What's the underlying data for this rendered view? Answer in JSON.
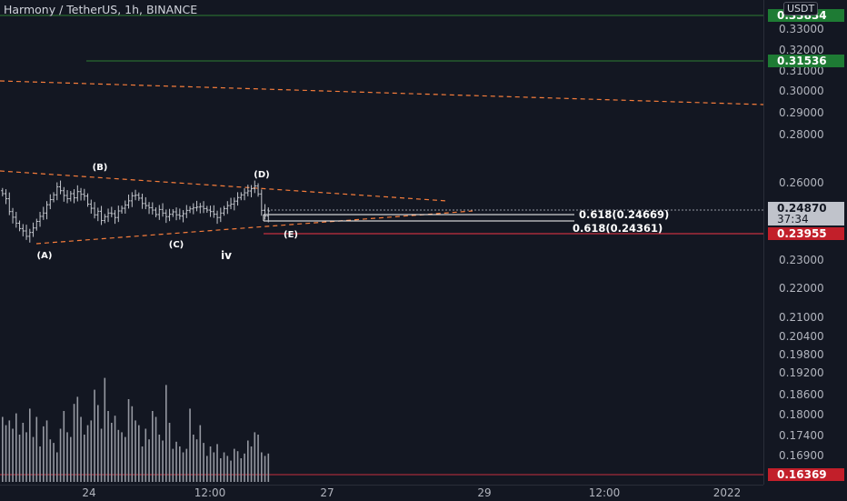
{
  "symbol_title": "Harmony / TetherUS, 1h, BINANCE",
  "currency_button": "USDT",
  "colors": {
    "background": "#131722",
    "bar": "#c4c7ce",
    "volume": "#9598a1",
    "trendline": "#f57c3b",
    "support_line": "#f23645",
    "green_label": "#1e7b34",
    "red_label": "#c21f2a",
    "current_label": "#c0c3cb"
  },
  "price_axis": {
    "ticks": [
      "0.33000",
      "0.32000",
      "0.31000",
      "0.30000",
      "0.29000",
      "0.28000",
      "0.26000",
      "0.23000",
      "0.22000",
      "0.21000",
      "0.20400",
      "0.19800",
      "0.19200",
      "0.18600",
      "0.18000",
      "0.17400",
      "0.16900"
    ],
    "labels": {
      "top_green": "0.33834",
      "mid_green": "0.31536",
      "current_price": "0.24870",
      "countdown": "37:34",
      "support_red": "0.23955",
      "bottom_red": "0.16369"
    }
  },
  "time_axis": {
    "ticks": [
      "24",
      "12:00",
      "27",
      "29",
      "12:00",
      "2022"
    ]
  },
  "annotations": {
    "wave_a": "(A)",
    "wave_b": "(B)",
    "wave_c": "(C)",
    "wave_d": "(D)",
    "wave_e": "(E)",
    "wave_iv": "iv"
  },
  "fib_levels": {
    "upper": "0.618(0.24669)",
    "lower": "0.618(0.24361)"
  },
  "series": {
    "bars_close": [
      0.2545,
      0.2528,
      0.2485,
      0.2466,
      0.2446,
      0.2428,
      0.242,
      0.2402,
      0.2415,
      0.243,
      0.2452,
      0.2469,
      0.248,
      0.2508,
      0.2525,
      0.2541,
      0.2568,
      0.2555,
      0.2539,
      0.2528,
      0.2545,
      0.2531,
      0.2552,
      0.2543,
      0.2537,
      0.251,
      0.2496,
      0.2474,
      0.2486,
      0.2455,
      0.2468,
      0.248,
      0.2478,
      0.2465,
      0.2487,
      0.2496,
      0.2507,
      0.2521,
      0.2538,
      0.254,
      0.253,
      0.2512,
      0.2505,
      0.2498,
      0.249,
      0.2475,
      0.2492,
      0.248,
      0.2468,
      0.2476,
      0.2484,
      0.2474,
      0.247,
      0.2478,
      0.2489,
      0.2494,
      0.2498,
      0.25,
      0.2502,
      0.2495,
      0.249,
      0.2485,
      0.2476,
      0.2465,
      0.248,
      0.2495,
      0.2505,
      0.251,
      0.252,
      0.2532,
      0.2541,
      0.2548,
      0.2554,
      0.2562,
      0.2571,
      0.2544,
      0.2489,
      0.247,
      0.2487
    ],
    "volume": [
      0.55,
      0.48,
      0.52,
      0.45,
      0.58,
      0.4,
      0.5,
      0.42,
      0.62,
      0.38,
      0.55,
      0.3,
      0.47,
      0.52,
      0.36,
      0.33,
      0.25,
      0.45,
      0.6,
      0.42,
      0.38,
      0.66,
      0.72,
      0.55,
      0.4,
      0.48,
      0.52,
      0.78,
      0.65,
      0.45,
      0.88,
      0.6,
      0.5,
      0.56,
      0.44,
      0.42,
      0.38,
      0.7,
      0.64,
      0.52,
      0.48,
      0.3,
      0.45,
      0.36,
      0.6,
      0.55,
      0.4,
      0.35,
      0.82,
      0.5,
      0.28,
      0.34,
      0.3,
      0.25,
      0.28,
      0.62,
      0.4,
      0.36,
      0.48,
      0.33,
      0.22,
      0.3,
      0.25,
      0.32,
      0.2,
      0.25,
      0.22,
      0.18,
      0.28,
      0.26,
      0.2,
      0.24,
      0.35,
      0.3,
      0.42,
      0.4,
      0.25,
      0.22,
      0.24
    ]
  }
}
